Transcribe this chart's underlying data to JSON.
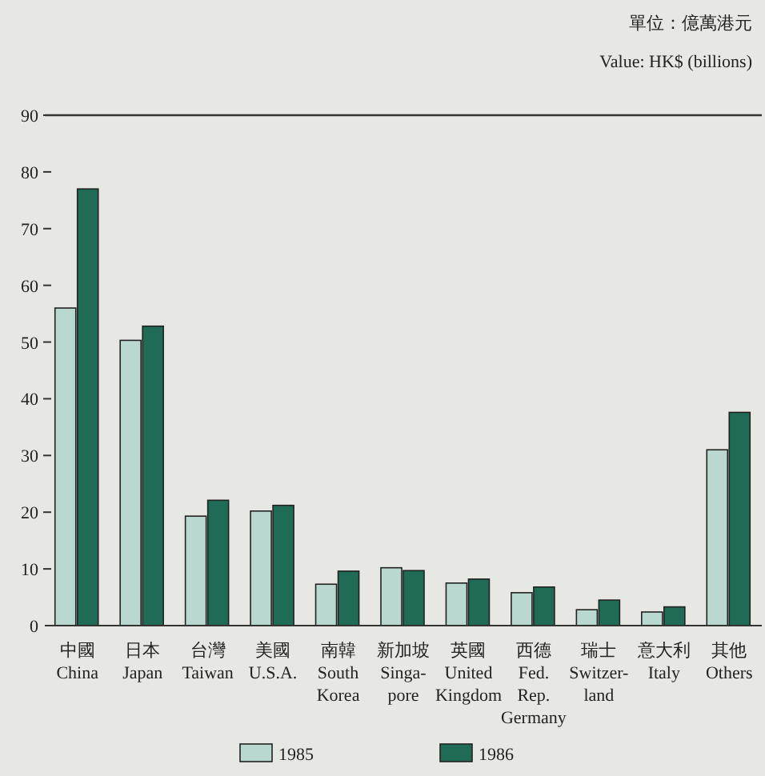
{
  "chart_data": {
    "type": "bar",
    "annotations": [
      "單位：億萬港元",
      "Value: HK$ (billions)"
    ],
    "categories": [
      "中國\nChina",
      "日本\nJapan",
      "台灣\nTaiwan",
      "美國\nU.S.A.",
      "南韓\nSouth\nKorea",
      "新加坡\nSinga-\npore",
      "英國\nUnited\nKingdom",
      "西德\nFed.\nRep.\nGermany",
      "瑞士\nSwitzer-\nland",
      "意大利\nItaly",
      "其他\nOthers"
    ],
    "series": [
      {
        "name": "1985",
        "color": "#b9d8d0",
        "values": [
          56,
          50.3,
          19.3,
          20.2,
          7.3,
          10.2,
          7.5,
          5.8,
          2.8,
          2.4,
          31
        ]
      },
      {
        "name": "1986",
        "color": "#1f6b55",
        "values": [
          77,
          52.8,
          22.1,
          21.2,
          9.6,
          9.7,
          8.2,
          6.8,
          4.5,
          3.3,
          37.6
        ]
      }
    ],
    "ylim": [
      0,
      90
    ],
    "yticks": [
      0,
      10,
      20,
      30,
      40,
      50,
      60,
      70,
      80,
      90
    ],
    "ref_lines": [
      {
        "axis": "y",
        "value": 90
      }
    ],
    "legend": "bottom"
  }
}
